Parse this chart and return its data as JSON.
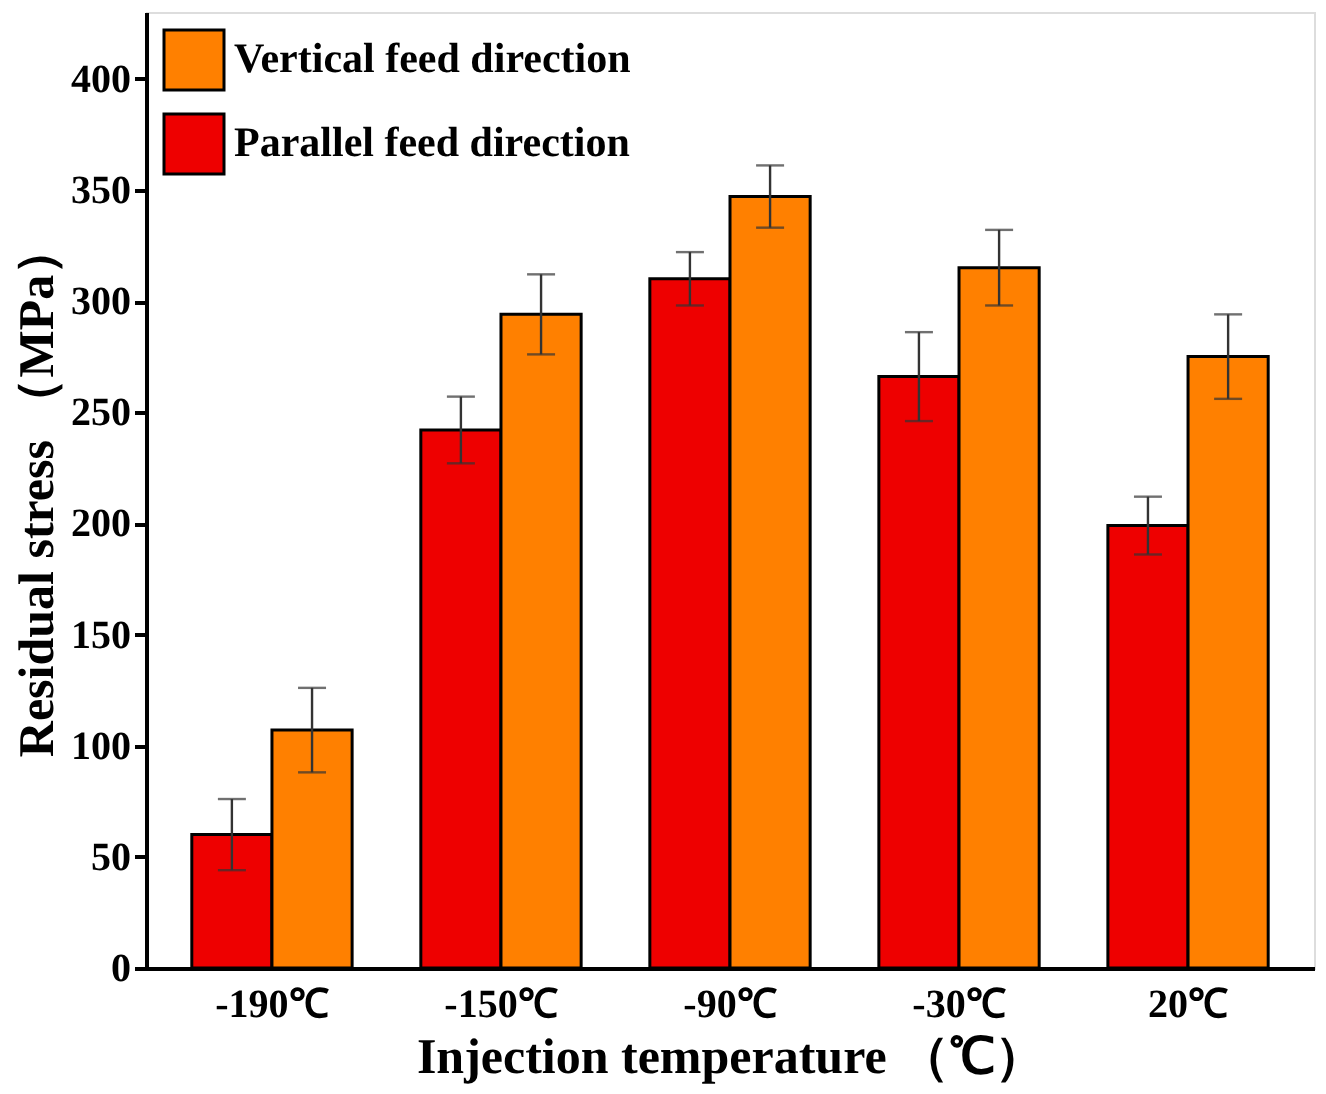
{
  "chart_data": {
    "type": "bar",
    "xlabel": "Injection temperature （℃）",
    "ylabel": "Residual stress （MPa）",
    "categories": [
      "-190℃",
      "-150℃",
      "-90℃",
      "-30℃",
      "20℃"
    ],
    "series": [
      {
        "name": "Parallel feed direction",
        "color": "#ee0000",
        "values": [
          60,
          242,
          310,
          266,
          199
        ],
        "errors": [
          16,
          15,
          12,
          20,
          13
        ]
      },
      {
        "name": "Vertical feed direction",
        "color": "#ff8000",
        "values": [
          107,
          294,
          347,
          315,
          275
        ],
        "errors": [
          19,
          18,
          14,
          17,
          19
        ]
      }
    ],
    "ylim": [
      0,
      430
    ],
    "yticks": [
      0,
      50,
      100,
      150,
      200,
      250,
      300,
      350,
      400
    ],
    "grid": false,
    "legend": "top left"
  }
}
